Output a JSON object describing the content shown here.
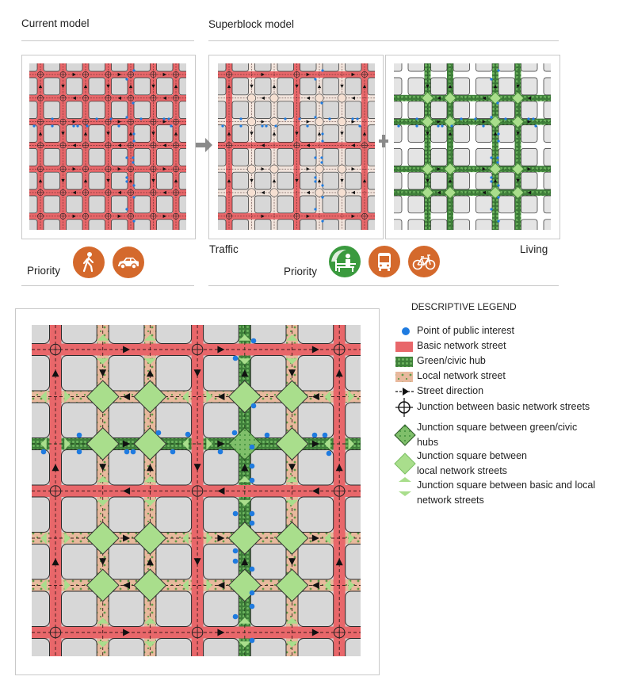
{
  "header": {
    "current_title": "Current model",
    "superblock_title": "Superblock model"
  },
  "labels": {
    "priority_current": "Priority",
    "traffic": "Traffic",
    "priority_superblock": "Priority",
    "living": "Living"
  },
  "icons": {
    "current": [
      "pedestrian-icon",
      "car-icon"
    ],
    "superblock": [
      "bench-person-icon",
      "bus-icon",
      "bicycle-icon"
    ]
  },
  "colors": {
    "basic_street": "#e8676a",
    "local_street": "#e8b99d",
    "green_hub": "#4e9a4a",
    "junction_square": "#a9de8c",
    "point_of_interest": "#1f7be0",
    "block": "#d7d7d7",
    "icon_orange": "#d4692c",
    "icon_green": "#3a9a3e",
    "arrow_connector": "#8a8a8a"
  },
  "maps": {
    "current": {
      "vertical": [
        "basic",
        "basic",
        "basic",
        "basic",
        "basic",
        "basic",
        "basic"
      ],
      "horizontal": [
        "basic",
        "basic",
        "basic",
        "basic",
        "basic",
        "basic",
        "basic"
      ]
    },
    "superblock_traffic": {
      "vertical": [
        "basic",
        "calm",
        "calm",
        "basic",
        "calm",
        "calm",
        "basic"
      ],
      "horizontal": [
        "basic",
        "calm",
        "calm",
        "basic",
        "calm",
        "calm",
        "basic"
      ]
    },
    "superblock_living": {
      "vertical": [
        "empty",
        "green",
        "green",
        "empty",
        "green",
        "green",
        "empty"
      ],
      "horizontal": [
        "empty",
        "green",
        "green",
        "empty",
        "green",
        "green",
        "empty"
      ]
    },
    "detail": {
      "vertical": [
        "basic",
        "local",
        "local",
        "basic",
        "green",
        "local",
        "basic"
      ],
      "horizontal": [
        "basic",
        "local",
        "green",
        "basic",
        "local",
        "local",
        "basic"
      ]
    }
  },
  "legend": {
    "title": "DESCRIPTIVE LEGEND",
    "items": [
      {
        "symbol": "point-of-interest",
        "label": "Point of public interest"
      },
      {
        "symbol": "basic-network-street",
        "label": "Basic network street"
      },
      {
        "symbol": "green-civic-hub",
        "label": "Green/civic hub"
      },
      {
        "symbol": "local-network-street",
        "label": "Local network street"
      },
      {
        "symbol": "street-direction",
        "label": "Street direction"
      },
      {
        "symbol": "basic-junction",
        "label": "Junction between basic network streets"
      },
      {
        "symbol": "green-junction-square",
        "label": "Junction square between green/civic",
        "label2": "hubs"
      },
      {
        "symbol": "local-junction-square",
        "label": "Junction square between",
        "label2": "local network streets"
      },
      {
        "symbol": "basic-local-junction-square",
        "label": "Junction square between basic and local",
        "label2": "network streets"
      }
    ]
  }
}
